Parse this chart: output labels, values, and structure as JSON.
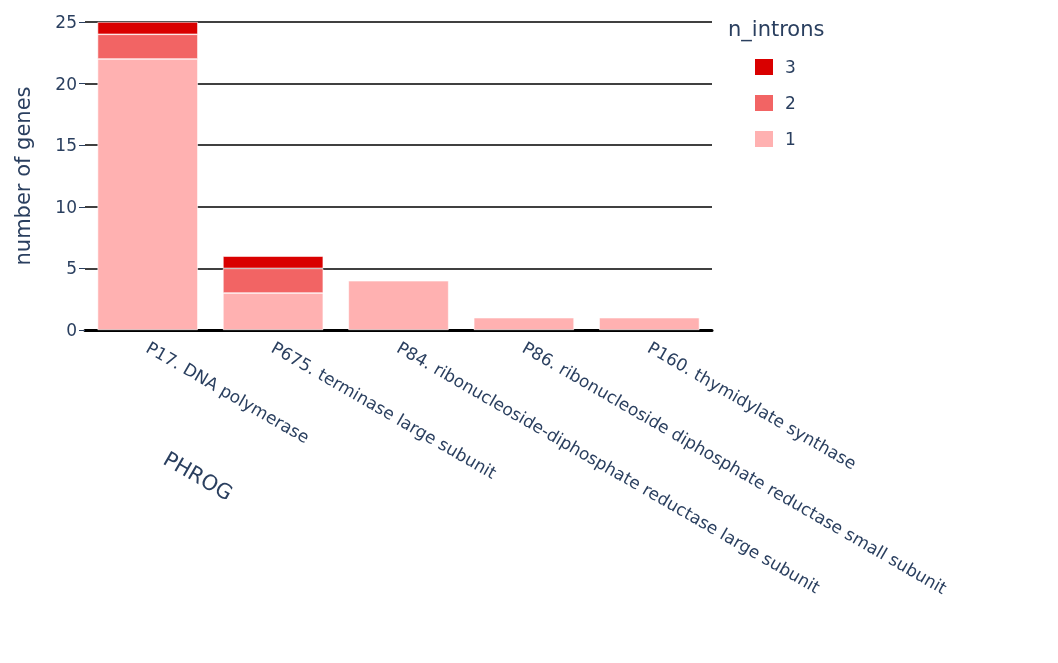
{
  "chart_data": {
    "type": "bar",
    "stacked": true,
    "xlabel": "PHROG",
    "ylabel": "number of genes",
    "legend_title": "n_introns",
    "legend": "top right",
    "grid": "y",
    "categories": [
      "P17. DNA polymerase",
      "P675. terminase large subunit",
      "P84. ribonucleoside-diphosphate reductase large subunit",
      "P86. ribonucleoside diphosphate reductase small subunit",
      "P160. thymidylate synthase"
    ],
    "ylim": [
      0,
      25
    ],
    "yticks": [
      0,
      5,
      10,
      15,
      20,
      25
    ],
    "series": [
      {
        "name": "1",
        "color": "#ffb1b1",
        "values": [
          22,
          3,
          4,
          1,
          1
        ]
      },
      {
        "name": "2",
        "color": "#f26464",
        "values": [
          2,
          2,
          null,
          null,
          null
        ]
      },
      {
        "name": "3",
        "color": "#d90000",
        "values": [
          1,
          1,
          null,
          null,
          null
        ]
      }
    ]
  }
}
